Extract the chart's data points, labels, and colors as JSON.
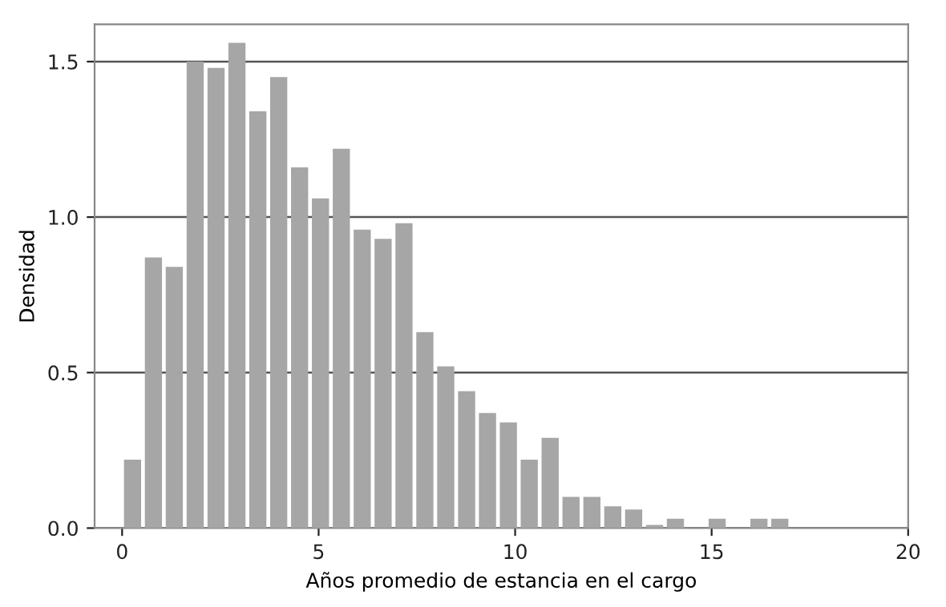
{
  "chart_data": {
    "type": "histogram",
    "xlabel": "Años promedio de estancia en el cargo",
    "ylabel": "Densidad",
    "bins": [
      0,
      0.53125,
      1.0625,
      1.59375,
      2.125,
      2.65625,
      3.1875,
      3.71875,
      4.25,
      4.78125,
      5.3125,
      5.84375,
      6.375,
      6.90625,
      7.4375,
      7.96875,
      8.5,
      9.03125,
      9.5625,
      10.09375,
      10.625,
      11.15625,
      11.6875,
      12.21875,
      12.75,
      13.28125,
      13.8125,
      14.34375,
      14.875,
      15.40625,
      15.9375,
      16.46875,
      17
    ],
    "values": [
      0.22,
      0.87,
      0.84,
      1.5,
      1.48,
      1.56,
      1.34,
      1.45,
      1.16,
      1.06,
      1.22,
      0.96,
      0.93,
      0.98,
      0.63,
      0.52,
      0.44,
      0.37,
      0.34,
      0.22,
      0.29,
      0.1,
      0.1,
      0.07,
      0.06,
      0.01,
      0.03,
      0,
      0.03,
      0,
      0.03,
      0.03
    ],
    "color": "#a6a6a6",
    "xlim": [
      -0.7,
      20
    ],
    "xticks": [
      0,
      5,
      10,
      15,
      20
    ],
    "ylim": [
      0,
      1.62
    ],
    "yticks": [
      {
        "value": 0,
        "label": "0.0"
      },
      0.5,
      {
        "value": 1,
        "label": "1.0"
      },
      1.5
    ],
    "grid": "y"
  }
}
